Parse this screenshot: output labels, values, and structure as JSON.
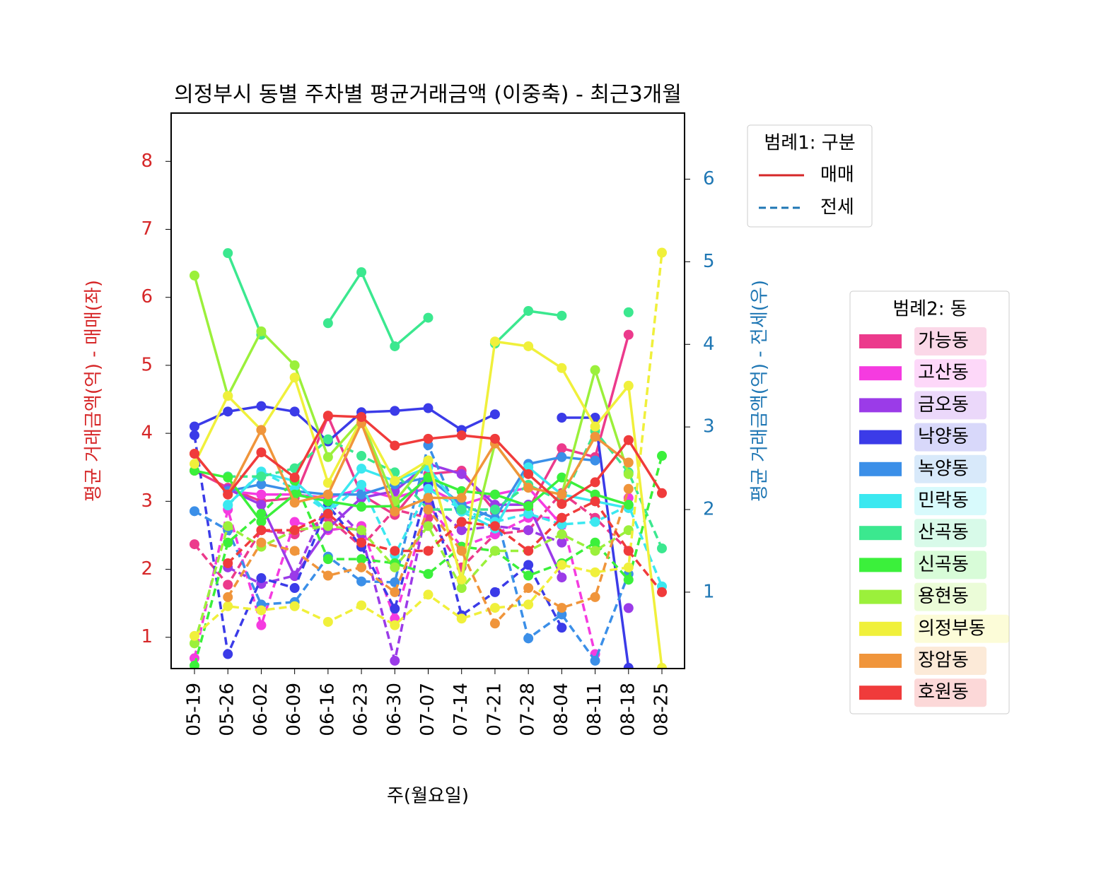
{
  "chart_data": {
    "type": "line",
    "title": "의정부시 동별 주차별 평균거래금액 (이중축) - 최근3개월",
    "xlabel": "주(월요일)",
    "ylabel": "평균 거래금액(억) - 매매(좌)",
    "y2label": "평균 거래금액(억) - 전세(우)",
    "categories": [
      "05-19",
      "05-26",
      "06-02",
      "06-09",
      "06-16",
      "06-23",
      "06-30",
      "07-07",
      "07-14",
      "07-21",
      "07-28",
      "08-04",
      "08-11",
      "08-18",
      "08-25"
    ],
    "ylim": [
      0.54,
      8.71
    ],
    "yticks": [
      1,
      2,
      3,
      4,
      5,
      6,
      7,
      8
    ],
    "y2lim": [
      0.075,
      6.8
    ],
    "y2ticks": [
      1,
      2,
      3,
      4,
      5,
      6
    ],
    "legend1_title": "범례1: 구분",
    "legend2_title": "범례2: 동",
    "kinds": [
      {
        "name": "매매",
        "color": "#d62728",
        "dashed": false,
        "axis": "y"
      },
      {
        "name": "전세",
        "color": "#1f77b4",
        "dashed": true,
        "axis": "y2"
      }
    ],
    "dongs": [
      {
        "name": "가능동",
        "color": "#ec3a8c",
        "sale": [
          3.45,
          3.2,
          3.0,
          3.05,
          4.25,
          3.1,
          2.8,
          3.4,
          3.45,
          2.85,
          2.88,
          3.78,
          3.65,
          5.45,
          null
        ],
        "jeonse": [
          1.58,
          1.09,
          1.75,
          1.7,
          1.9,
          1.55,
          2.0,
          1.9,
          1.3,
          1.7,
          1.75,
          2.2,
          1.9,
          1.5,
          null
        ]
      },
      {
        "name": "고산동",
        "color": "#f53be0",
        "sale": [
          null,
          3.15,
          3.1,
          3.1,
          3.05,
          3.18,
          3.05,
          3.2,
          2.95,
          3.1,
          3.2,
          2.65,
          null,
          3.05,
          null
        ],
        "jeonse": [
          0.2,
          2.0,
          0.6,
          1.85,
          1.75,
          1.8,
          0.68,
          2.05,
          1.55,
          1.7,
          1.9,
          1.9,
          0.25,
          null,
          null
        ]
      },
      {
        "name": "금오동",
        "color": "#9b3be8",
        "sale": [
          null,
          3.18,
          2.95,
          1.9,
          2.6,
          3.05,
          3.15,
          3.55,
          3.4,
          2.95,
          2.95,
          1.88,
          null,
          1.43,
          null
        ],
        "jeonse": [
          null,
          1.3,
          1.1,
          1.2,
          2.1,
          1.7,
          0.17,
          2.1,
          1.75,
          1.8,
          1.75,
          1.6,
          null,
          null,
          null
        ]
      },
      {
        "name": "낙양동",
        "color": "#3b3be8",
        "sale": [
          4.1,
          4.32,
          4.4,
          4.32,
          3.88,
          4.31,
          4.33,
          4.37,
          4.05,
          4.28,
          null,
          4.23,
          4.23,
          0.55,
          null
        ],
        "jeonse": [
          2.9,
          0.25,
          1.17,
          1.05,
          2.05,
          1.55,
          0.8,
          2.3,
          0.72,
          1.0,
          1.33,
          0.57,
          null,
          null,
          null
        ]
      },
      {
        "name": "녹양동",
        "color": "#3b8fe8",
        "sale": [
          null,
          3.15,
          3.25,
          3.15,
          3.1,
          3.1,
          3.25,
          3.35,
          2.95,
          2.75,
          3.55,
          3.65,
          3.6,
          null,
          null
        ],
        "jeonse": [
          1.98,
          1.75,
          0.85,
          0.88,
          1.43,
          1.13,
          1.12,
          2.78,
          1.85,
          2.0,
          0.44,
          0.73,
          0.17,
          1.22,
          null
        ]
      },
      {
        "name": "민락동",
        "color": "#3be8f0",
        "sale": [
          null,
          2.95,
          3.42,
          3.3,
          2.85,
          3.48,
          3.3,
          3.5,
          2.85,
          2.6,
          3.5,
          3.1,
          3.0,
          2.9,
          null
        ],
        "jeonse": [
          null,
          2.05,
          2.46,
          2.25,
          1.97,
          2.3,
          1.45,
          2.25,
          2.0,
          1.85,
          1.95,
          1.82,
          1.85,
          2.05,
          1.07
        ]
      },
      {
        "name": "산곡동",
        "color": "#3be88f",
        "sale": [
          null,
          6.65,
          5.45,
          null,
          5.62,
          6.37,
          5.28,
          5.7,
          null,
          5.32,
          5.8,
          5.73,
          null,
          5.78,
          null
        ],
        "jeonse": [
          null,
          2.4,
          2.4,
          2.5,
          2.85,
          2.65,
          2.45,
          2.0,
          2.0,
          2.0,
          2.3,
          2.1,
          2.95,
          2.45,
          1.53
        ]
      },
      {
        "name": "신곡동",
        "color": "#3bf03b",
        "sale": [
          3.45,
          3.35,
          2.7,
          3.1,
          3.0,
          2.92,
          2.93,
          3.35,
          3.15,
          3.1,
          2.93,
          3.35,
          3.1,
          2.95,
          null
        ],
        "jeonse": [
          0.11,
          1.6,
          1.95,
          2.35,
          1.4,
          1.4,
          1.35,
          1.22,
          1.55,
          1.5,
          1.2,
          1.35,
          1.6,
          1.15,
          2.65
        ]
      },
      {
        "name": "용현동",
        "color": "#9bf03b",
        "sale": [
          6.32,
          4.55,
          5.5,
          5.0,
          3.65,
          4.2,
          3.0,
          3.6,
          1.85,
          3.85,
          3.2,
          3.1,
          4.93,
          3.4,
          null
        ],
        "jeonse": [
          0.38,
          1.8,
          1.55,
          1.75,
          1.8,
          1.75,
          1.3,
          1.8,
          1.05,
          1.5,
          1.5,
          1.7,
          1.5,
          1.75,
          null
        ]
      },
      {
        "name": "의정부동",
        "color": "#f0f03b",
        "sale": [
          3.55,
          4.55,
          4.05,
          4.82,
          3.27,
          4.2,
          3.3,
          3.6,
          1.85,
          5.35,
          5.28,
          4.96,
          4.1,
          4.7,
          0.55
        ],
        "jeonse": [
          0.47,
          0.83,
          0.78,
          0.83,
          0.64,
          0.84,
          0.6,
          0.97,
          0.68,
          0.81,
          0.85,
          1.33,
          1.24,
          1.3,
          5.11
        ]
      },
      {
        "name": "장암동",
        "color": "#f0953b",
        "sale": [
          3.7,
          3.1,
          4.05,
          2.98,
          3.1,
          4.15,
          2.85,
          3.05,
          3.05,
          3.85,
          3.2,
          3.1,
          3.95,
          3.57,
          null
        ],
        "jeonse": [
          null,
          0.94,
          1.6,
          1.5,
          1.2,
          1.3,
          1.0,
          2.0,
          1.5,
          0.62,
          1.05,
          0.81,
          0.94,
          2.25,
          null
        ]
      },
      {
        "name": "호원동",
        "color": "#f03b3b",
        "sale": [
          3.7,
          3.1,
          3.72,
          3.35,
          4.26,
          4.24,
          3.82,
          3.92,
          3.97,
          3.92,
          3.4,
          2.96,
          3.28,
          3.9,
          3.12
        ],
        "jeonse": [
          null,
          1.35,
          1.75,
          1.75,
          1.95,
          1.6,
          1.5,
          1.5,
          1.85,
          1.8,
          1.5,
          1.9,
          2.1,
          1.5,
          1.0
        ]
      }
    ]
  }
}
